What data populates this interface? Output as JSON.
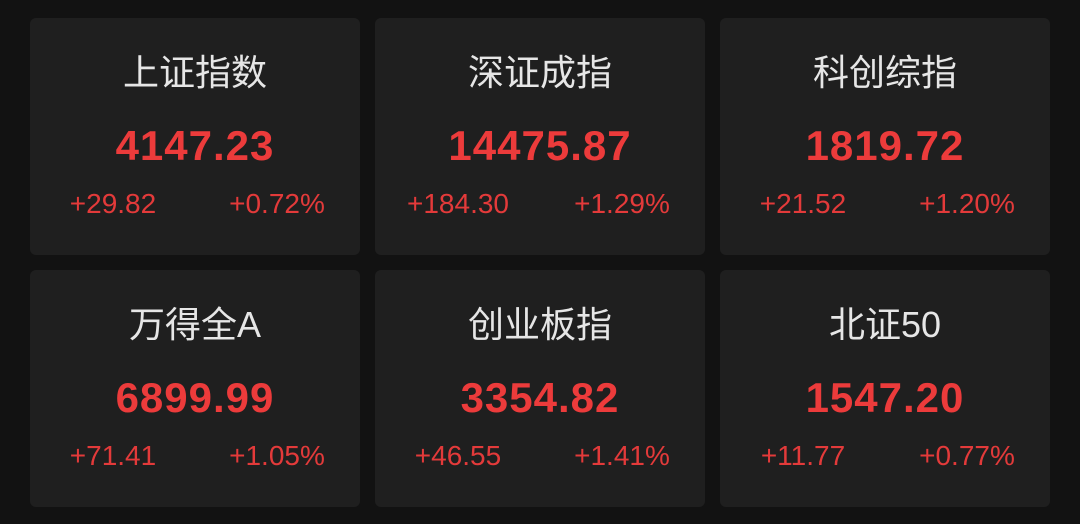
{
  "indices": [
    {
      "name": "上证指数",
      "value": "4147.23",
      "change": "+29.82",
      "change_pct": "+0.72%"
    },
    {
      "name": "深证成指",
      "value": "14475.87",
      "change": "+184.30",
      "change_pct": "+1.29%"
    },
    {
      "name": "科创综指",
      "value": "1819.72",
      "change": "+21.52",
      "change_pct": "+1.20%"
    },
    {
      "name": "万得全A",
      "value": "6899.99",
      "change": "+71.41",
      "change_pct": "+1.05%"
    },
    {
      "name": "创业板指",
      "value": "3354.82",
      "change": "+46.55",
      "change_pct": "+1.41%"
    },
    {
      "name": "北证50",
      "value": "1547.20",
      "change": "+11.77",
      "change_pct": "+0.77%"
    }
  ],
  "colors": {
    "up": "#ec3b3b",
    "card_bg": "#1f1f1f",
    "page_bg": "#121212",
    "title": "#e6e6e6"
  }
}
